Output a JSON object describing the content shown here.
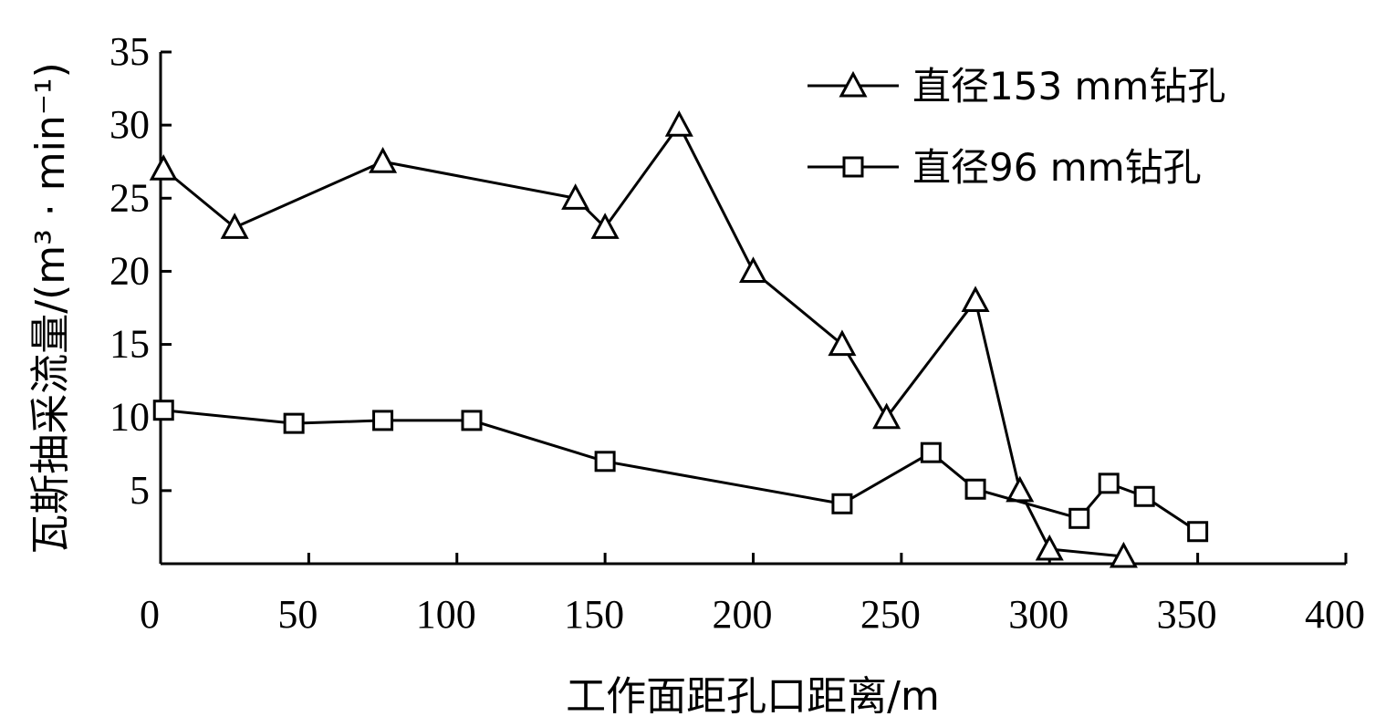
{
  "chart_data": {
    "type": "line",
    "xlabel": "工作面距孔口距离/m",
    "ylabel": "瓦斯抽采流量/(m³ · min⁻¹)",
    "xlim": [
      0,
      400
    ],
    "ylim": [
      0,
      35
    ],
    "xticks": [
      "0",
      "50",
      "100",
      "150",
      "200",
      "250",
      "300",
      "350",
      "400"
    ],
    "yticks": [
      "5",
      "10",
      "15",
      "20",
      "25",
      "30",
      "35"
    ],
    "grid": false,
    "legend_position": "top-right",
    "series": [
      {
        "name": "直径153 mm钻孔",
        "marker": "triangle",
        "color": "#000000",
        "points": [
          [
            1,
            27
          ],
          [
            25,
            23
          ],
          [
            75,
            27.5
          ],
          [
            140,
            25
          ],
          [
            150,
            23
          ],
          [
            175,
            30
          ],
          [
            200,
            20
          ],
          [
            230,
            15
          ],
          [
            245,
            10
          ],
          [
            275,
            18
          ],
          [
            290,
            5
          ],
          [
            300,
            1
          ],
          [
            325,
            0.5
          ]
        ]
      },
      {
        "name": "直径96 mm钻孔",
        "marker": "square",
        "color": "#000000",
        "points": [
          [
            1,
            10.5
          ],
          [
            45,
            9.6
          ],
          [
            75,
            9.8
          ],
          [
            105,
            9.8
          ],
          [
            150,
            7
          ],
          [
            230,
            4.1
          ],
          [
            260,
            7.6
          ],
          [
            275,
            5.1
          ],
          [
            310,
            3.1
          ],
          [
            320,
            5.5
          ],
          [
            332,
            4.6
          ],
          [
            350,
            2.2
          ]
        ]
      }
    ]
  }
}
